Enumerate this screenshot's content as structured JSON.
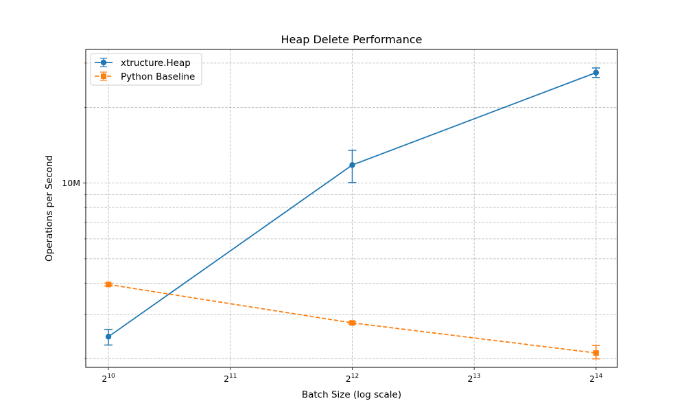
{
  "chart_data": {
    "type": "line",
    "title": "Heap Delete Performance",
    "xlabel": "Batch Size (log scale)",
    "ylabel": "Operations per Second",
    "x_scale": "log2",
    "y_scale": "log10",
    "x": [
      1024,
      4096,
      16384
    ],
    "x_ticks": [
      1024,
      2048,
      4096,
      8192,
      16384
    ],
    "x_tick_labels": [
      {
        "base": "2",
        "exp": "10"
      },
      {
        "base": "2",
        "exp": "11"
      },
      {
        "base": "2",
        "exp": "12"
      },
      {
        "base": "2",
        "exp": "13"
      },
      {
        "base": "2",
        "exp": "14"
      }
    ],
    "y_major_ticks": [
      10000000
    ],
    "y_major_tick_labels": [
      "10M"
    ],
    "y_minor_ticks": [
      2000000,
      3000000,
      4000000,
      5000000,
      6000000,
      7000000,
      8000000,
      9000000,
      20000000,
      30000000
    ],
    "xlim": [
      900,
      18500
    ],
    "ylim": [
      1850000,
      34000000
    ],
    "grid": true,
    "legend_position": "top-left",
    "series": [
      {
        "name": "xtructure.Heap",
        "color": "#1f77b4",
        "marker": "circle",
        "linestyle": "solid",
        "values": [
          2450000,
          11800000,
          27500000
        ],
        "err_low": [
          2270000,
          10050000,
          26300000
        ],
        "err_high": [
          2620000,
          13500000,
          28700000
        ]
      },
      {
        "name": "Python Baseline",
        "color": "#ff7f0e",
        "marker": "square",
        "linestyle": "dashed",
        "values": [
          3950000,
          2780000,
          2110000
        ],
        "err_low": [
          3900000,
          2750000,
          2000000
        ],
        "err_high": [
          4000000,
          2810000,
          2260000
        ]
      }
    ]
  }
}
